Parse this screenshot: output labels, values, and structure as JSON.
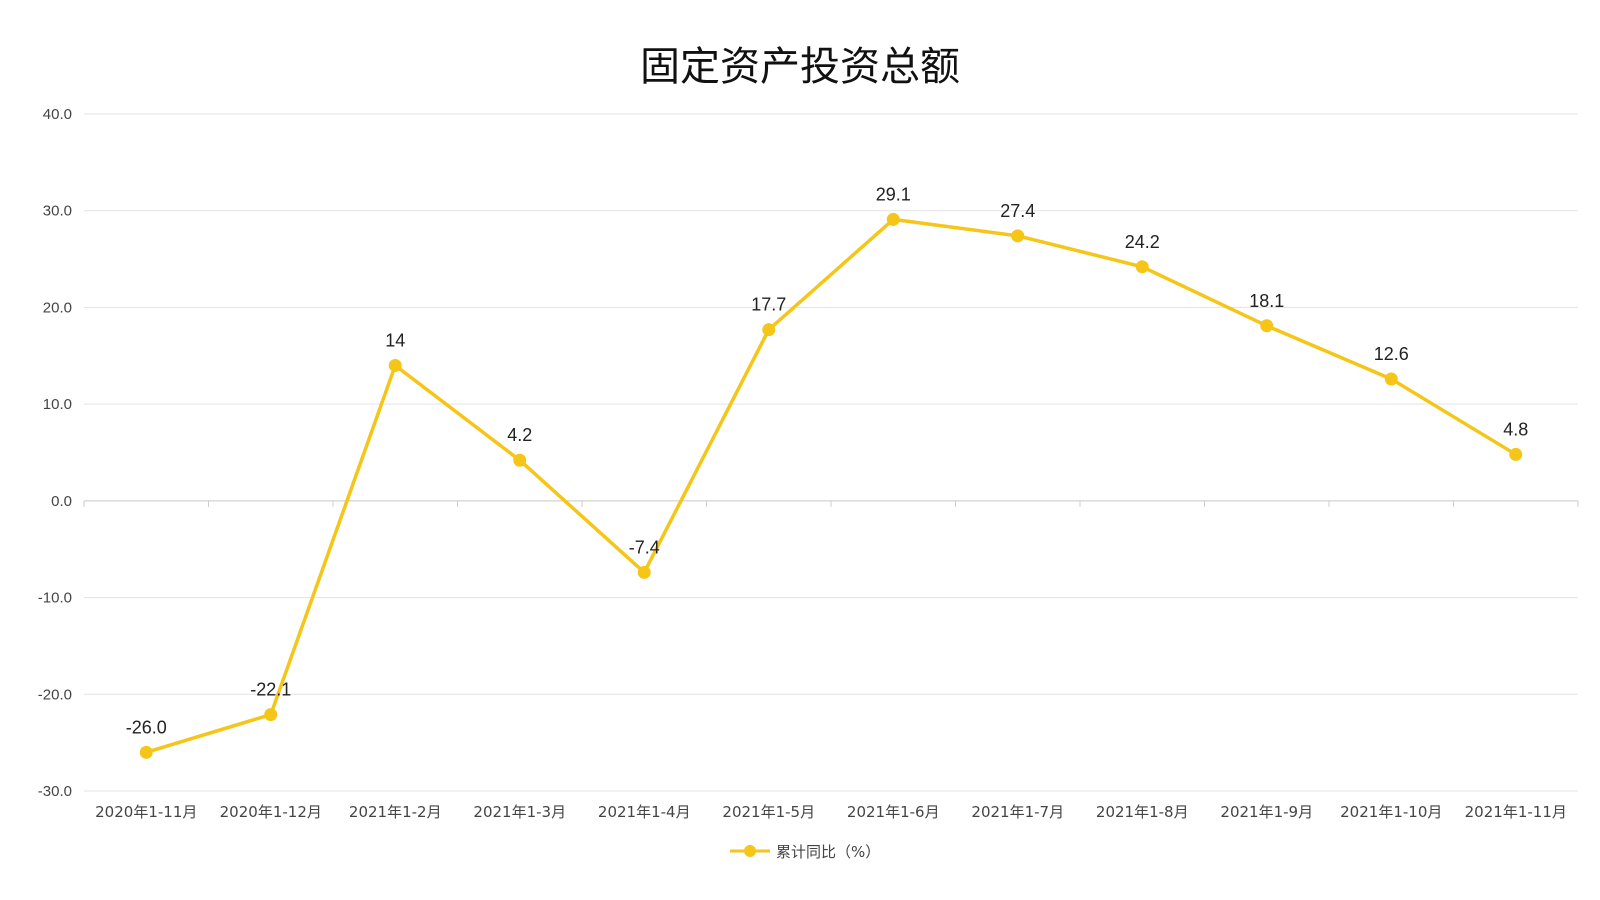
{
  "chart_data": {
    "type": "line",
    "title": "固定资产投资总额",
    "xlabel": "",
    "ylabel": "",
    "ylim": [
      -30,
      40
    ],
    "ytick_step": 10,
    "yticks": [
      "40.0",
      "30.0",
      "20.0",
      "10.0",
      "0.0",
      "-10.0",
      "-20.0",
      "-30.0"
    ],
    "grid": true,
    "legend_position": "bottom",
    "categories": [
      "2020年1-11月",
      "2020年1-12月",
      "2021年1-2月",
      "2021年1-3月",
      "2021年1-4月",
      "2021年1-5月",
      "2021年1-6月",
      "2021年1-7月",
      "2021年1-8月",
      "2021年1-9月",
      "2021年1-10月",
      "2021年1-11月"
    ],
    "series": [
      {
        "name": "累计同比（%）",
        "color": "#F5C518",
        "values": [
          -26.0,
          -22.1,
          14,
          4.2,
          -7.4,
          17.7,
          29.1,
          27.4,
          24.2,
          18.1,
          12.6,
          4.8
        ],
        "labels": [
          "-26.0",
          "-22.1",
          "14",
          "4.2",
          "-7.4",
          "17.7",
          "29.1",
          "27.4",
          "24.2",
          "18.1",
          "12.6",
          "4.8"
        ]
      }
    ]
  }
}
